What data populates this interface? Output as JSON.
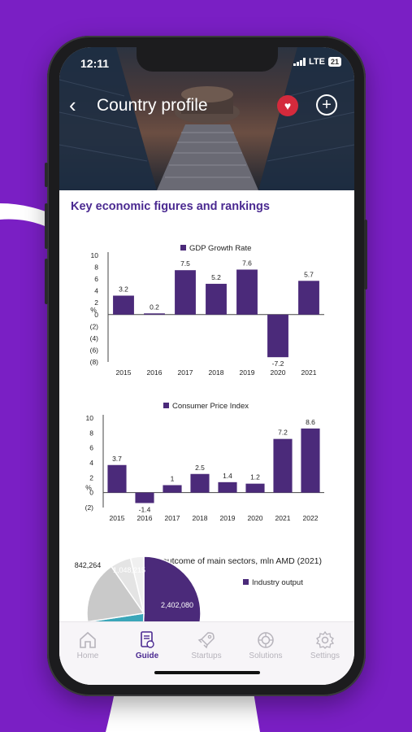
{
  "status": {
    "time": "12:11",
    "network": "LTE",
    "battery": "21"
  },
  "header": {
    "title": "Country profile",
    "back_icon": "chevron-left-icon",
    "favorite_icon": "heart-icon",
    "add_icon": "plus-icon"
  },
  "section_title": "Key economic figures and rankings",
  "chart_data": [
    {
      "type": "bar",
      "legend": "GDP Growth Rate",
      "ylabel": "%",
      "categories": [
        "2015",
        "2016",
        "2017",
        "2018",
        "2019",
        "2020",
        "2021"
      ],
      "values": [
        3.2,
        0.2,
        7.5,
        5.2,
        7.6,
        -7.2,
        5.7
      ],
      "value_labels": [
        "3.2",
        "0.2",
        "7.5",
        "5.2",
        "7.6",
        "-7.2",
        "5.7"
      ],
      "yticks": [
        "10",
        "8",
        "6",
        "4",
        "2",
        "0",
        "(2)",
        "(4)",
        "(6)",
        "(8)"
      ],
      "ylim": [
        -8,
        10
      ],
      "bar_color": "#4b2a7a"
    },
    {
      "type": "bar",
      "legend": "Consumer Price Index",
      "ylabel": "%",
      "categories": [
        "2015",
        "2016",
        "2017",
        "2018",
        "2019",
        "2020",
        "2021",
        "2022"
      ],
      "values": [
        3.7,
        -1.4,
        1,
        2.5,
        1.4,
        1.2,
        7.2,
        8.6
      ],
      "value_labels": [
        "3.7",
        "-1.4",
        "1",
        "2.5",
        "1.4",
        "1.2",
        "7.2",
        "8.6"
      ],
      "yticks": [
        "10",
        "8",
        "6",
        "4",
        "2",
        "0",
        "(2)"
      ],
      "ylim": [
        -2,
        10
      ],
      "bar_color": "#4b2a7a"
    },
    {
      "type": "pie",
      "title": "Gross outcome of main sectors, mln AMD (2021)",
      "slices": [
        {
          "label": "2,402,080",
          "value": 2402080,
          "color": "#4b2a7a"
        },
        {
          "label": "1,048,215",
          "value": 1048215,
          "color": "#3aa6b9"
        },
        {
          "label": "842,264",
          "value": 842264,
          "color": "#c9c9c9"
        }
      ],
      "legend": [
        "Industry output"
      ]
    }
  ],
  "tabs": [
    {
      "label": "Home",
      "icon": "home-icon"
    },
    {
      "label": "Guide",
      "icon": "guide-icon"
    },
    {
      "label": "Startups",
      "icon": "rocket-icon"
    },
    {
      "label": "Solutions",
      "icon": "solutions-icon"
    },
    {
      "label": "Settings",
      "icon": "gear-icon"
    }
  ],
  "colors": {
    "background": "#7a1fc4",
    "accent": "#4b2a91",
    "bar": "#4b2a7a",
    "favorite": "#d42a3c"
  }
}
